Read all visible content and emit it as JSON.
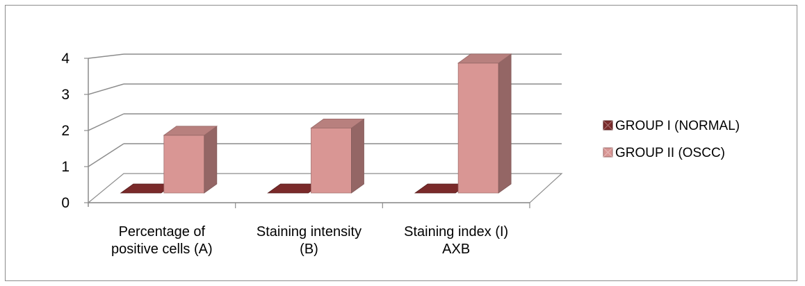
{
  "chart_data": {
    "type": "bar",
    "style": "3d-clustered-column",
    "categories": [
      [
        "Percentage of",
        "positive cells (A)"
      ],
      [
        "Staining intensity",
        "(B)"
      ],
      [
        "Staining index (I)",
        "AXB"
      ]
    ],
    "series": [
      {
        "name": "GROUP I (NORMAL)",
        "values": [
          0,
          0,
          0
        ],
        "color": "#7a2a2a"
      },
      {
        "name": "GROUP II (OSCC)",
        "values": [
          1.6,
          1.8,
          3.6
        ],
        "color": "#d99694"
      }
    ],
    "ylim": [
      0,
      4
    ],
    "yticks": [
      0,
      1,
      2,
      3,
      4
    ],
    "grid": true,
    "legend": "right",
    "title": "",
    "xlabel": "",
    "ylabel": ""
  }
}
